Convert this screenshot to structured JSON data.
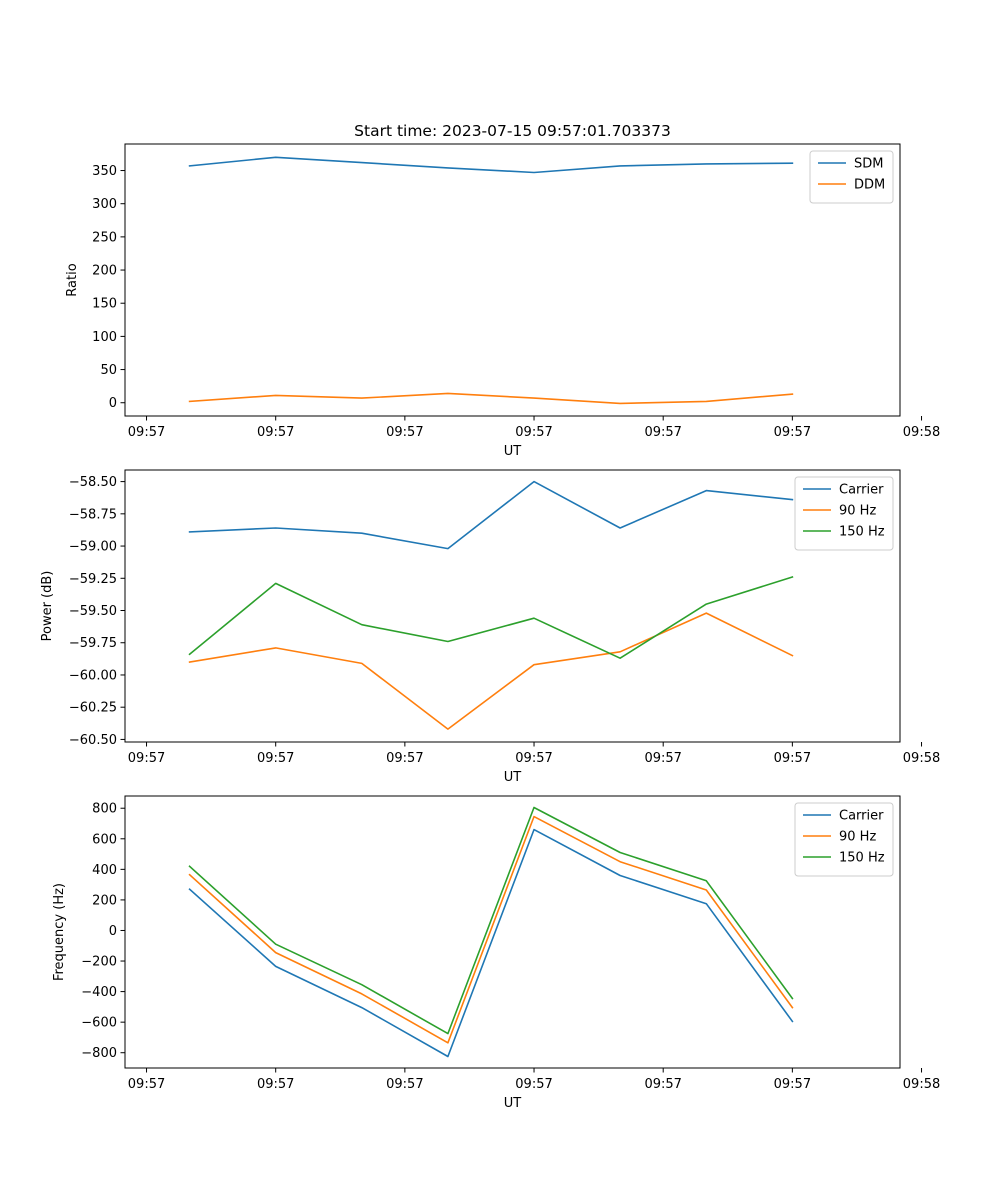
{
  "figure_title": "Start time: 2023-07-15 09:57:01.703373",
  "chart_data": [
    {
      "type": "line",
      "title": "Start time: 2023-07-15 09:57:01.703373",
      "xlabel": "UT",
      "ylabel": "Ratio",
      "xlim": [
        -0.75,
        8.25
      ],
      "ylim": [
        -20,
        390
      ],
      "x": [
        0,
        1,
        2,
        3,
        4,
        5,
        6,
        7
      ],
      "x_tick_values": [
        -0.5,
        1,
        2.5,
        4,
        5.5,
        7,
        8.5
      ],
      "x_tick_labels": [
        "09:57",
        "09:57",
        "09:57",
        "09:57",
        "09:57",
        "09:57",
        "09:58"
      ],
      "y_ticks": [
        0,
        50,
        100,
        150,
        200,
        250,
        300,
        350
      ],
      "y_tick_labels": [
        "0",
        "50",
        "100",
        "150",
        "200",
        "250",
        "300",
        "350"
      ],
      "legend_position": "top-right",
      "series": [
        {
          "name": "SDM",
          "color": "#1f77b4",
          "values": [
            357,
            370,
            362,
            354,
            347,
            357,
            360,
            361
          ]
        },
        {
          "name": "DDM",
          "color": "#ff7f0e",
          "values": [
            2,
            11,
            7,
            14,
            7,
            -1,
            2,
            13
          ]
        }
      ]
    },
    {
      "type": "line",
      "xlabel": "UT",
      "ylabel": "Power (dB)",
      "xlim": [
        -0.75,
        8.25
      ],
      "ylim": [
        -60.52,
        -58.41
      ],
      "x": [
        0,
        1,
        2,
        3,
        4,
        5,
        6,
        7
      ],
      "x_tick_values": [
        -0.5,
        1,
        2.5,
        4,
        5.5,
        7,
        8.5
      ],
      "x_tick_labels": [
        "09:57",
        "09:57",
        "09:57",
        "09:57",
        "09:57",
        "09:57",
        "09:58"
      ],
      "y_ticks": [
        -60.5,
        -60.25,
        -60.0,
        -59.75,
        -59.5,
        -59.25,
        -59.0,
        -58.75,
        -58.5
      ],
      "y_tick_labels": [
        "−60.50",
        "−60.25",
        "−60.00",
        "−59.75",
        "−59.50",
        "−59.25",
        "−59.00",
        "−58.75",
        "−58.50"
      ],
      "legend_position": "top-right",
      "series": [
        {
          "name": "Carrier",
          "color": "#1f77b4",
          "values": [
            -58.89,
            -58.86,
            -58.9,
            -59.02,
            -58.5,
            -58.86,
            -58.57,
            -58.64
          ]
        },
        {
          "name": "90 Hz",
          "color": "#ff7f0e",
          "values": [
            -59.9,
            -59.79,
            -59.91,
            -60.42,
            -59.92,
            -59.82,
            -59.52,
            -59.85
          ]
        },
        {
          "name": "150 Hz",
          "color": "#2ca02c",
          "values": [
            -59.84,
            -59.29,
            -59.61,
            -59.74,
            -59.56,
            -59.87,
            -59.45,
            -59.24
          ]
        }
      ]
    },
    {
      "type": "line",
      "xlabel": "UT",
      "ylabel": "Frequency (Hz)",
      "xlim": [
        -0.75,
        8.25
      ],
      "ylim": [
        -900,
        880
      ],
      "x": [
        0,
        1,
        2,
        3,
        4,
        5,
        6,
        7
      ],
      "x_tick_values": [
        -0.5,
        1,
        2.5,
        4,
        5.5,
        7,
        8.5
      ],
      "x_tick_labels": [
        "09:57",
        "09:57",
        "09:57",
        "09:57",
        "09:57",
        "09:57",
        "09:58"
      ],
      "y_ticks": [
        -800,
        -600,
        -400,
        -200,
        0,
        200,
        400,
        600,
        800
      ],
      "y_tick_labels": [
        "−800",
        "−600",
        "−400",
        "−200",
        "0",
        "200",
        "400",
        "600",
        "800"
      ],
      "legend_position": "top-right",
      "series": [
        {
          "name": "Carrier",
          "color": "#1f77b4",
          "values": [
            270,
            -235,
            -505,
            -825,
            660,
            360,
            175,
            -595
          ]
        },
        {
          "name": "90 Hz",
          "color": "#ff7f0e",
          "values": [
            365,
            -145,
            -415,
            -735,
            745,
            450,
            265,
            -505
          ]
        },
        {
          "name": "150 Hz",
          "color": "#2ca02c",
          "values": [
            420,
            -90,
            -355,
            -675,
            805,
            510,
            325,
            -445
          ]
        }
      ]
    }
  ]
}
